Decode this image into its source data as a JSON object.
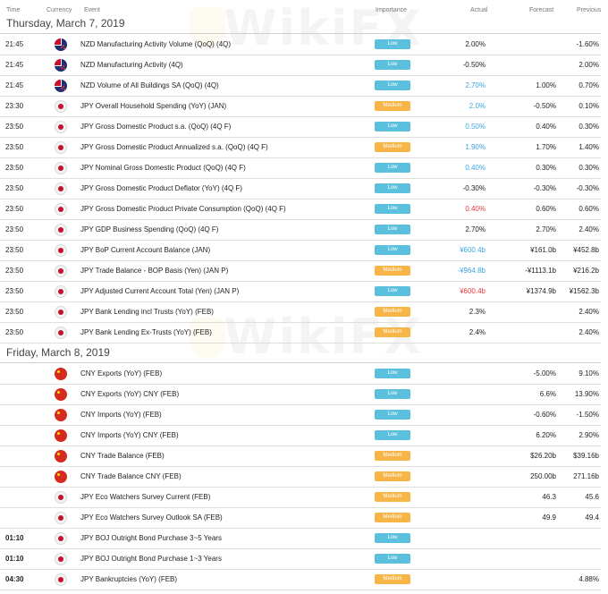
{
  "watermark": "WikiFX",
  "columns": {
    "time": "Time",
    "currency": "Currency",
    "event": "Event",
    "importance": "Importance",
    "actual": "Actual",
    "forecast": "Forecast",
    "previous": "Previous"
  },
  "days": [
    {
      "title": "Thursday, March 7, 2019",
      "events": [
        {
          "time": "21:45",
          "flag": "nz",
          "event": "NZD Manufacturing Activity Volume (QoQ) (4Q)",
          "importance": "Low",
          "actual": "2.00%",
          "actual_color": "dark",
          "forecast": "",
          "previous": "-1.60%"
        },
        {
          "time": "21:45",
          "flag": "nz",
          "event": "NZD Manufacturing Activity (4Q)",
          "importance": "Low",
          "actual": "-0.50%",
          "actual_color": "dark",
          "forecast": "",
          "previous": "2.00%"
        },
        {
          "time": "21:45",
          "flag": "nz",
          "event": "NZD Volume of All Buildings SA (QoQ) (4Q)",
          "importance": "Low",
          "actual": "2.70%",
          "actual_color": "blue",
          "forecast": "1.00%",
          "previous": "0.70%"
        },
        {
          "time": "23:30",
          "flag": "jp",
          "event": "JPY Overall Household Spending (YoY) (JAN)",
          "importance": "Medium",
          "actual": "2.0%",
          "actual_color": "blue",
          "forecast": "-0.50%",
          "previous": "0.10%"
        },
        {
          "time": "23:50",
          "flag": "jp",
          "event": "JPY Gross Domestic Product s.a. (QoQ) (4Q F)",
          "importance": "Low",
          "actual": "0.50%",
          "actual_color": "blue",
          "forecast": "0.40%",
          "previous": "0.30%"
        },
        {
          "time": "23:50",
          "flag": "jp",
          "event": "JPY Gross Domestic Product Annualized s.a. (QoQ) (4Q F)",
          "importance": "Medium",
          "actual": "1.90%",
          "actual_color": "blue",
          "forecast": "1.70%",
          "previous": "1.40%"
        },
        {
          "time": "23:50",
          "flag": "jp",
          "event": "JPY Nominal Gross Domestic Product (QoQ) (4Q F)",
          "importance": "Low",
          "actual": "0.40%",
          "actual_color": "blue",
          "forecast": "0.30%",
          "previous": "0.30%"
        },
        {
          "time": "23:50",
          "flag": "jp",
          "event": "JPY Gross Domestic Product Deflator (YoY) (4Q F)",
          "importance": "Low",
          "actual": "-0.30%",
          "actual_color": "dark",
          "forecast": "-0.30%",
          "previous": "-0.30%"
        },
        {
          "time": "23:50",
          "flag": "jp",
          "event": "JPY Gross Domestic Product Private Consumption (QoQ) (4Q F)",
          "importance": "Low",
          "actual": "0.40%",
          "actual_color": "red",
          "forecast": "0.60%",
          "previous": "0.60%"
        },
        {
          "time": "23:50",
          "flag": "jp",
          "event": "JPY GDP Business Spending (QoQ) (4Q F)",
          "importance": "Low",
          "actual": "2.70%",
          "actual_color": "dark",
          "forecast": "2.70%",
          "previous": "2.40%"
        },
        {
          "time": "23:50",
          "flag": "jp",
          "event": "JPY BoP Current Account Balance (JAN)",
          "importance": "Low",
          "actual": "¥600.4b",
          "actual_color": "blue",
          "forecast": "¥161.0b",
          "previous": "¥452.8b"
        },
        {
          "time": "23:50",
          "flag": "jp",
          "event": "JPY Trade Balance - BOP Basis (Yen) (JAN P)",
          "importance": "Medium",
          "actual": "-¥964.8b",
          "actual_color": "blue",
          "forecast": "-¥1113.1b",
          "previous": "¥216.2b"
        },
        {
          "time": "23:50",
          "flag": "jp",
          "event": "JPY Adjusted Current Account Total (Yen) (JAN P)",
          "importance": "Low",
          "actual": "¥600.4b",
          "actual_color": "red",
          "forecast": "¥1374.9b",
          "previous": "¥1562.3b"
        },
        {
          "time": "23:50",
          "flag": "jp",
          "event": "JPY Bank Lending incl Trusts (YoY) (FEB)",
          "importance": "Medium",
          "actual": "2.3%",
          "actual_color": "dark",
          "forecast": "",
          "previous": "2.40%"
        },
        {
          "time": "23:50",
          "flag": "jp",
          "event": "JPY Bank Lending Ex-Trusts (YoY) (FEB)",
          "importance": "Medium",
          "actual": "2.4%",
          "actual_color": "dark",
          "forecast": "",
          "previous": "2.40%"
        }
      ]
    },
    {
      "title": "Friday, March 8, 2019",
      "events": [
        {
          "time": "",
          "flag": "cn",
          "event": "CNY Exports (YoY) (FEB)",
          "importance": "Low",
          "actual": "",
          "actual_color": "dark",
          "forecast": "-5.00%",
          "previous": "9.10%"
        },
        {
          "time": "",
          "flag": "cn",
          "event": "CNY Exports (YoY) CNY (FEB)",
          "importance": "Low",
          "actual": "",
          "actual_color": "dark",
          "forecast": "6.6%",
          "previous": "13.90%"
        },
        {
          "time": "",
          "flag": "cn",
          "event": "CNY Imports (YoY) (FEB)",
          "importance": "Low",
          "actual": "",
          "actual_color": "dark",
          "forecast": "-0.60%",
          "previous": "-1.50%"
        },
        {
          "time": "",
          "flag": "cn",
          "event": "CNY Imports (YoY) CNY (FEB)",
          "importance": "Low",
          "actual": "",
          "actual_color": "dark",
          "forecast": "6.20%",
          "previous": "2.90%"
        },
        {
          "time": "",
          "flag": "cn",
          "event": "CNY Trade Balance (FEB)",
          "importance": "Medium",
          "actual": "",
          "actual_color": "dark",
          "forecast": "$26.20b",
          "previous": "$39.16b"
        },
        {
          "time": "",
          "flag": "cn",
          "event": "CNY Trade Balance CNY (FEB)",
          "importance": "Medium",
          "actual": "",
          "actual_color": "dark",
          "forecast": "250.00b",
          "previous": "271.16b"
        },
        {
          "time": "",
          "flag": "jp",
          "event": "JPY Eco Watchers Survey Current (FEB)",
          "importance": "Medium",
          "actual": "",
          "actual_color": "dark",
          "forecast": "46.3",
          "previous": "45.6"
        },
        {
          "time": "",
          "flag": "jp",
          "event": "JPY Eco Watchers Survey Outlook SA (FEB)",
          "importance": "Medium",
          "actual": "",
          "actual_color": "dark",
          "forecast": "49.9",
          "previous": "49.4"
        },
        {
          "time": "01:10",
          "flag": "jp",
          "event": "JPY BOJ Outright Bond Purchase 3~5 Years",
          "importance": "Low",
          "actual": "",
          "actual_color": "dark",
          "forecast": "",
          "previous": ""
        },
        {
          "time": "01:10",
          "flag": "jp",
          "event": "JPY BOJ Outright Bond Purchase 1~3 Years",
          "importance": "Low",
          "actual": "",
          "actual_color": "dark",
          "forecast": "",
          "previous": ""
        },
        {
          "time": "04:30",
          "flag": "jp",
          "event": "JPY Bankruptcies (YoY) (FEB)",
          "importance": "Medium",
          "actual": "",
          "actual_color": "dark",
          "forecast": "",
          "previous": "4.88%"
        }
      ]
    }
  ]
}
